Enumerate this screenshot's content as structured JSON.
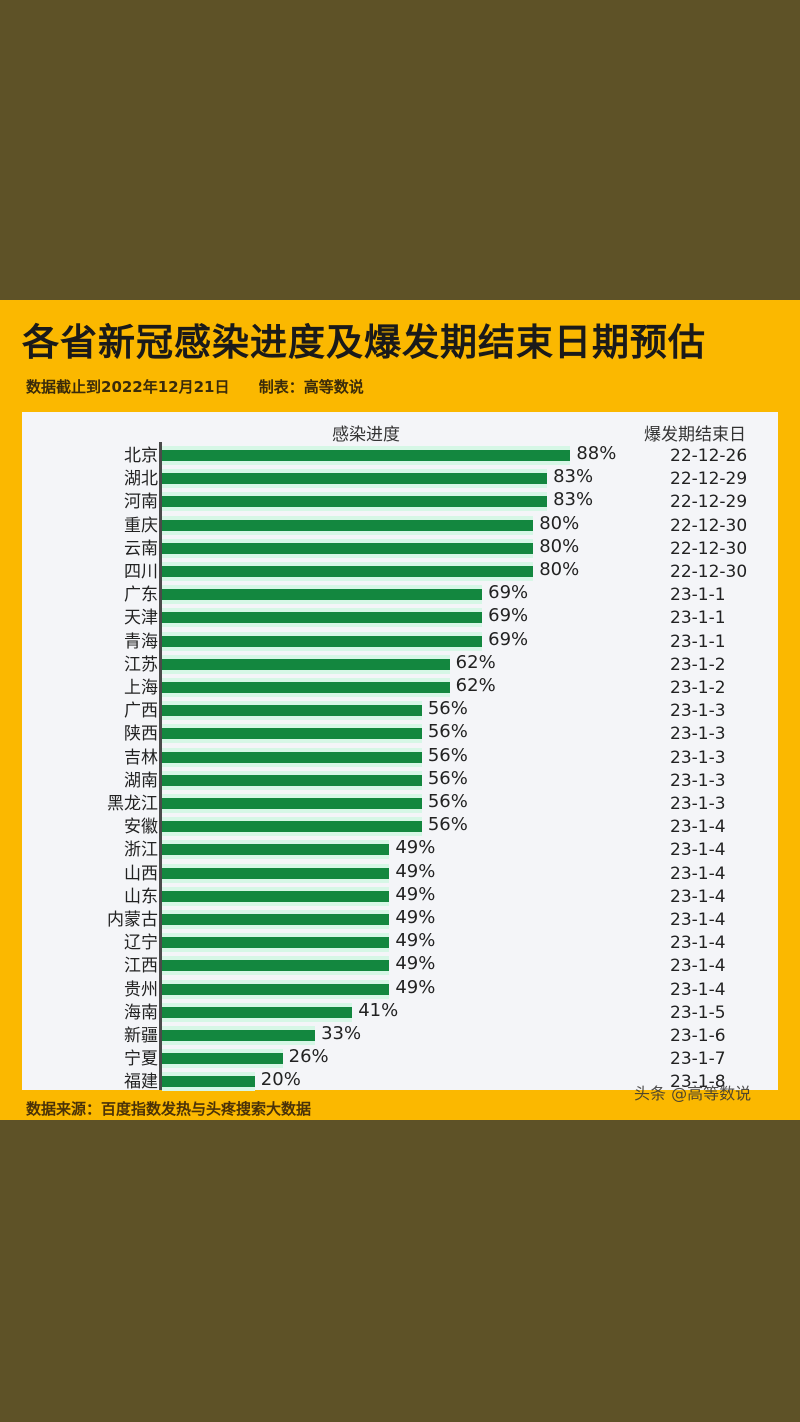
{
  "header": {
    "title": "各省新冠感染进度及爆发期结束日期预估",
    "data_cutoff": "数据截止到2022年12月21日",
    "made_by": "制表：高等数说"
  },
  "columns": {
    "progress": "感染进度",
    "end_date": "爆发期结束日"
  },
  "footer": {
    "source": "数据来源：百度指数发热与头疼搜索大数据",
    "watermark": "头条 @高等数说"
  },
  "colors": {
    "background": "#5e5227",
    "panel": "#fbb800",
    "chart_bg": "#f4f5f8",
    "bar": "#13873f"
  },
  "chart_data": {
    "type": "bar",
    "orientation": "horizontal",
    "title": "各省新冠感染进度及爆发期结束日期预估",
    "subtitle": "数据截止到2022年12月21日  制表：高等数说",
    "xlabel": "感染进度",
    "ylabel": "",
    "xlim": [
      0,
      100
    ],
    "grid": false,
    "categories": [
      "北京",
      "湖北",
      "河南",
      "重庆",
      "云南",
      "四川",
      "广东",
      "天津",
      "青海",
      "江苏",
      "上海",
      "广西",
      "陕西",
      "吉林",
      "湖南",
      "黑龙江",
      "安徽",
      "浙江",
      "山西",
      "山东",
      "内蒙古",
      "辽宁",
      "江西",
      "贵州",
      "海南",
      "新疆",
      "宁夏",
      "福建"
    ],
    "values": [
      88,
      83,
      83,
      80,
      80,
      80,
      69,
      69,
      69,
      62,
      62,
      56,
      56,
      56,
      56,
      56,
      56,
      49,
      49,
      49,
      49,
      49,
      49,
      49,
      41,
      33,
      26,
      20
    ],
    "value_labels": [
      "88%",
      "83%",
      "83%",
      "80%",
      "80%",
      "80%",
      "69%",
      "69%",
      "69%",
      "62%",
      "62%",
      "56%",
      "56%",
      "56%",
      "56%",
      "56%",
      "56%",
      "49%",
      "49%",
      "49%",
      "49%",
      "49%",
      "49%",
      "49%",
      "41%",
      "33%",
      "26%",
      "20%"
    ],
    "end_dates": [
      "22-12-26",
      "22-12-29",
      "22-12-29",
      "22-12-30",
      "22-12-30",
      "22-12-30",
      "23-1-1",
      "23-1-1",
      "23-1-1",
      "23-1-2",
      "23-1-2",
      "23-1-3",
      "23-1-3",
      "23-1-3",
      "23-1-3",
      "23-1-3",
      "23-1-4",
      "23-1-4",
      "23-1-4",
      "23-1-4",
      "23-1-4",
      "23-1-4",
      "23-1-4",
      "23-1-4",
      "23-1-5",
      "23-1-6",
      "23-1-7",
      "23-1-8"
    ],
    "end_date_column_title": "爆发期结束日",
    "source": "数据来源：百度指数发热与头疼搜索大数据"
  }
}
